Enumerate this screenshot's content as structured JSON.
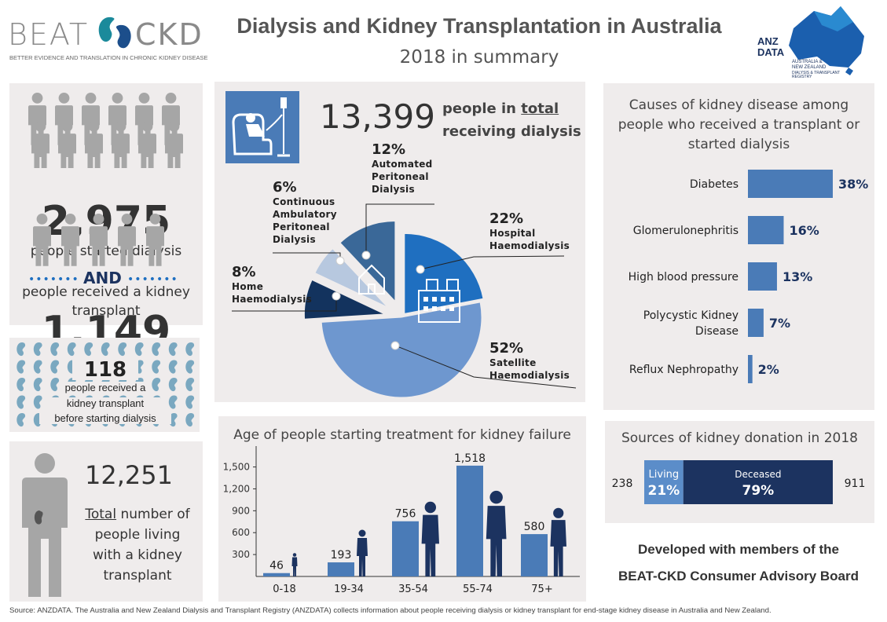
{
  "header": {
    "title": "Dialysis and Kidney Transplantation in Australia",
    "subtitle": "2018 in summary",
    "beat_logo_left": "BEAT",
    "beat_logo_right": "CKD",
    "beat_tagline": "BETTER EVIDENCE AND TRANSLATION IN CHRONIC KIDNEY DISEASE",
    "anzdata_logo_line1": "ANZ",
    "anzdata_logo_line2": "DATA",
    "anzdata_line3": "AUSTRALIA &",
    "anzdata_line4": "NEW ZEALAND",
    "anzdata_line5": "DIALYSIS & TRANSPLANT",
    "anzdata_line6": "REGISTRY"
  },
  "started": {
    "count": "2,975",
    "label": "people started dialysis",
    "connector": "AND",
    "transplant_count": "1,149",
    "transplant_label_1": "people received a kidney",
    "transplant_label_2": "transplant"
  },
  "preemptive": {
    "count": "118",
    "line1": "people received a",
    "line2": "kidney transplant",
    "line3": "before starting dialysis"
  },
  "living": {
    "count": "12,251",
    "word_total": "Total",
    "line1_rest": " number of",
    "line2": "people living",
    "line3": "with a kidney",
    "line4": "transplant"
  },
  "dialysis": {
    "total": "13,399",
    "label_1a": "people in ",
    "label_1b": "total",
    "label_2": "receiving dialysis"
  },
  "footer": {
    "source": "Source: ANZDATA. The Australia and New Zealand Dialysis and Transplant Registry (ANZDATA) collects information about people receiving dialysis or kidney transplant for end-stage kidney disease in Australia and New Zealand.",
    "developed_line1": "Developed with members of the",
    "developed_line2": "BEAT-CKD Consumer Advisory Board"
  },
  "colors": {
    "panel": "#efecec",
    "navy": "#1c3360",
    "bar": "#4a7bb7",
    "satellite": "#6e97cf",
    "hospital": "#1f6fc0",
    "home": "#13335e",
    "capd": "#b7c8df",
    "apd": "#3a6898",
    "people_grey": "#a6a6a6",
    "kidney_teal": "#7aa8c0"
  },
  "chart_data": [
    {
      "type": "pie",
      "labels": [
        "Hospital Haemodialysis",
        "Satellite Haemodialysis",
        "Home Haemodialysis",
        "Continuous Ambulatory Peritoneal Dialysis",
        "Automated Peritoneal Dialysis"
      ],
      "label_lines": [
        [
          "Hospital",
          "Haemodialysis"
        ],
        [
          "Satellite",
          "Haemodialysis"
        ],
        [
          "Home",
          "Haemodialysis"
        ],
        [
          "Continuous",
          "Ambulatory",
          "Peritoneal",
          "Dialysis"
        ],
        [
          "Automated",
          "Peritoneal",
          "Dialysis"
        ]
      ],
      "values": [
        22,
        52,
        8,
        6,
        12
      ],
      "value_labels": [
        "22%",
        "52%",
        "8%",
        "6%",
        "12%"
      ],
      "colors": [
        "#1f6fc0",
        "#6e97cf",
        "#13335e",
        "#b7c8df",
        "#3a6898"
      ]
    },
    {
      "type": "bar",
      "title": "Causes of kidney disease among people who received a transplant or started dialysis",
      "title_lines": [
        "Causes of kidney disease among",
        "people who received a transplant or",
        "started dialysis"
      ],
      "categories": [
        "Diabetes",
        "Glomerulonephritis",
        "High blood pressure",
        "Polycystic Kidney Disease",
        "Reflux Nephropathy"
      ],
      "category_lines": [
        [
          "Diabetes"
        ],
        [
          "Glomerulonephritis"
        ],
        [
          "High blood pressure"
        ],
        [
          "Polycystic Kidney",
          "Disease"
        ],
        [
          "Reflux Nephropathy"
        ]
      ],
      "values": [
        38,
        16,
        13,
        7,
        2
      ],
      "value_labels": [
        "38%",
        "16%",
        "13%",
        "7%",
        "2%"
      ],
      "orientation": "horizontal"
    },
    {
      "type": "bar",
      "title": "Sources of kidney donation in 2018",
      "categories": [
        "Living",
        "Deceased"
      ],
      "values": [
        238,
        911
      ],
      "percent_labels": [
        "21%",
        "79%"
      ],
      "count_labels": [
        "238",
        "911"
      ],
      "colors": [
        "#5b8dc9",
        "#1c3360"
      ],
      "orientation": "stacked-horizontal"
    },
    {
      "type": "bar",
      "title": "Age of people starting treatment for kidney failure",
      "categories": [
        "0-18",
        "19-34",
        "35-54",
        "55-74",
        "75+"
      ],
      "values": [
        46,
        193,
        756,
        1518,
        580
      ],
      "value_labels": [
        "46",
        "193",
        "756",
        "1,518",
        "580"
      ],
      "ylim": [
        0,
        1700
      ],
      "yticks": [
        300,
        600,
        900,
        1200,
        1500
      ],
      "ytick_labels": [
        "300",
        "600",
        "900",
        "1,200",
        "1,500"
      ],
      "grid": false
    }
  ]
}
